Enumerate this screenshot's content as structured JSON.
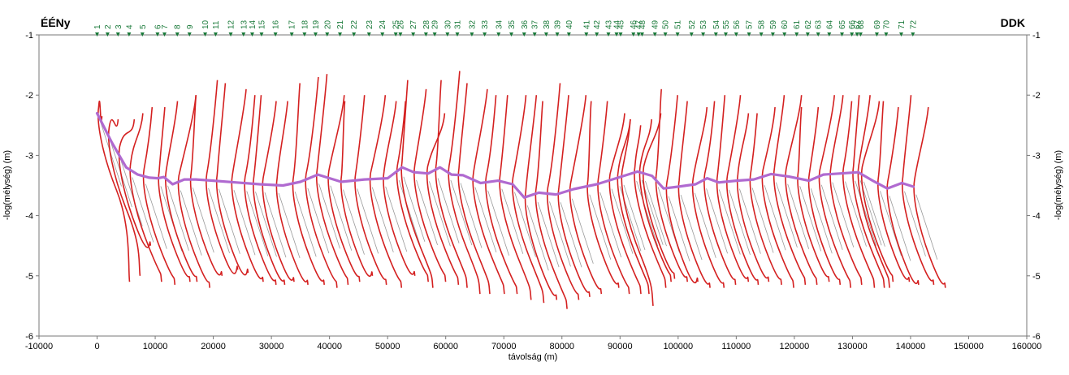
{
  "chart_data": {
    "type": "line",
    "title": "",
    "corner_labels": {
      "left": "ÉÉNy",
      "right": "DDK"
    },
    "xlabel": "távolság (m)",
    "ylabel": "-log(mélység) (m)",
    "y2label": "-log(mélység) (m)",
    "xlim": [
      -10000,
      160000
    ],
    "ylim": [
      -6,
      -1
    ],
    "xticks": [
      -10000,
      0,
      10000,
      20000,
      30000,
      40000,
      50000,
      60000,
      70000,
      80000,
      90000,
      100000,
      110000,
      120000,
      130000,
      140000,
      150000,
      160000
    ],
    "yticks": [
      -6,
      -5,
      -4,
      -3,
      -2,
      -1
    ],
    "grid": false,
    "colors": {
      "curves": "#d42020",
      "boundary": "#b06ad0",
      "guide": "#9a9a9a",
      "stations": "#1a7a3a",
      "frame": "#777777"
    },
    "stations": {
      "labels": [
        "1",
        "2",
        "3",
        "4",
        "5",
        "6",
        "7",
        "8",
        "9",
        "10",
        "11",
        "12",
        "13",
        "14",
        "15",
        "16",
        "17",
        "18",
        "19",
        "20",
        "21",
        "22",
        "23",
        "24",
        "25",
        "26",
        "27",
        "28",
        "29",
        "30",
        "31",
        "32",
        "33",
        "34",
        "35",
        "36",
        "37",
        "38",
        "39",
        "40",
        "41",
        "42",
        "43",
        "44",
        "45",
        "46",
        "47",
        "48",
        "49",
        "50",
        "51",
        "52",
        "53",
        "54",
        "55",
        "56",
        "57",
        "58",
        "59",
        "60",
        "61",
        "62",
        "63",
        "64",
        "65",
        "66",
        "67",
        "68",
        "69",
        "70",
        "71",
        "72"
      ],
      "x": [
        0,
        1800,
        3600,
        5500,
        7800,
        10400,
        11600,
        13800,
        15900,
        18600,
        20400,
        23000,
        25200,
        26700,
        28300,
        30700,
        33500,
        35700,
        37600,
        39600,
        41800,
        44200,
        46800,
        49100,
        51400,
        52200,
        54400,
        56600,
        58100,
        60300,
        62000,
        64500,
        66700,
        69100,
        71300,
        73500,
        75300,
        77300,
        79200,
        81200,
        84200,
        86000,
        88000,
        89400,
        90100,
        92300,
        93200,
        93800,
        96000,
        97800,
        99900,
        102300,
        104300,
        106500,
        108200,
        110000,
        112200,
        114300,
        116300,
        118300,
        120400,
        122300,
        124100,
        126000,
        128200,
        129900,
        130800,
        131400,
        134200,
        135800,
        138400,
        140400
      ]
    },
    "boundary": {
      "name": "",
      "x": [
        0,
        2500,
        5000,
        7000,
        9000,
        10500,
        11500,
        13000,
        15000,
        17000,
        20000,
        24000,
        28000,
        32000,
        35000,
        38000,
        42000,
        46000,
        50000,
        52500,
        54500,
        57000,
        59000,
        61000,
        63000,
        66000,
        69000,
        71500,
        73500,
        76000,
        79000,
        82000,
        86000,
        90000,
        93000,
        95500,
        97500,
        100000,
        103000,
        105000,
        107000,
        110000,
        113000,
        116000,
        119000,
        122500,
        125000,
        128000,
        131000,
        133500,
        136000,
        138500,
        140500
      ],
      "y": [
        -2.3,
        -2.78,
        -3.2,
        -3.32,
        -3.37,
        -3.38,
        -3.36,
        -3.48,
        -3.4,
        -3.4,
        -3.42,
        -3.45,
        -3.48,
        -3.5,
        -3.44,
        -3.32,
        -3.44,
        -3.4,
        -3.38,
        -3.2,
        -3.28,
        -3.3,
        -3.2,
        -3.32,
        -3.33,
        -3.46,
        -3.42,
        -3.48,
        -3.7,
        -3.62,
        -3.65,
        -3.56,
        -3.48,
        -3.36,
        -3.27,
        -3.34,
        -3.55,
        -3.52,
        -3.48,
        -3.38,
        -3.45,
        -3.42,
        -3.4,
        -3.31,
        -3.35,
        -3.42,
        -3.32,
        -3.3,
        -3.28,
        -3.42,
        -3.55,
        -3.46,
        -3.52
      ]
    },
    "sounding_curves": {
      "name": "",
      "top_y": [
        -2.35,
        -2.4,
        -2.4,
        -2.3,
        -2.2,
        -2.2,
        -2.1,
        -2.0,
        -2.0,
        -1.75,
        -1.8,
        -1.9,
        -2.0,
        -2.0,
        -2.1,
        -2.1,
        -1.8,
        -1.7,
        -1.65,
        -2.0,
        -2.1,
        -2.0,
        -2.0,
        -2.1,
        -2.1,
        -1.75,
        -1.9,
        -2.3,
        -1.75,
        -1.6,
        -1.8,
        -1.9,
        -2.0,
        -2.0,
        -2.0,
        -2.0,
        -2.1,
        -1.8,
        -2.0,
        -2.0,
        -2.1,
        -2.1,
        -2.3,
        -2.4,
        -2.4,
        -2.5,
        -2.4,
        -2.3,
        -1.9,
        -2.0,
        -2.1,
        -2.2,
        -2.1,
        -2.0,
        -2.0,
        -2.3,
        -2.3,
        -2.2,
        -2.0,
        -2.0,
        -2.2,
        -2.2,
        -2.0,
        -2.0,
        -2.1,
        -2.0,
        -2.0,
        -2.1,
        -2.1,
        -2.2,
        -2.0,
        -2.2
      ],
      "bottom_y": [
        -5.1,
        -5.0,
        -4.5,
        -5.1,
        -5.15,
        -5.1,
        -5.1,
        -5.2,
        -5.0,
        -4.9,
        -4.95,
        -5.1,
        -5.15,
        -5.15,
        -5.1,
        -5.15,
        -5.15,
        -5.2,
        -5.15,
        -5.1,
        -5.0,
        -5.15,
        -5.2,
        -5.0,
        -5.1,
        -5.2,
        -5.1,
        -5.15,
        -5.2,
        -5.3,
        -5.3,
        -5.3,
        -5.3,
        -5.4,
        -5.45,
        -5.4,
        -5.55,
        -5.4,
        -5.35,
        -5.3,
        -5.2,
        -5.3,
        -5.3,
        -5.3,
        -5.5,
        -5.2,
        -5.1,
        -5.05,
        -5.1,
        -5.1,
        -5.2,
        -5.2,
        -5.15,
        -5.1,
        -5.15,
        -5.1,
        -5.15,
        -5.2,
        -5.15,
        -5.15,
        -5.1,
        -5.15,
        -5.2,
        -5.15,
        -5.2,
        -5.2,
        -5.2,
        -5.1,
        -5.1,
        -5.15,
        -5.15,
        -5.2
      ]
    }
  }
}
